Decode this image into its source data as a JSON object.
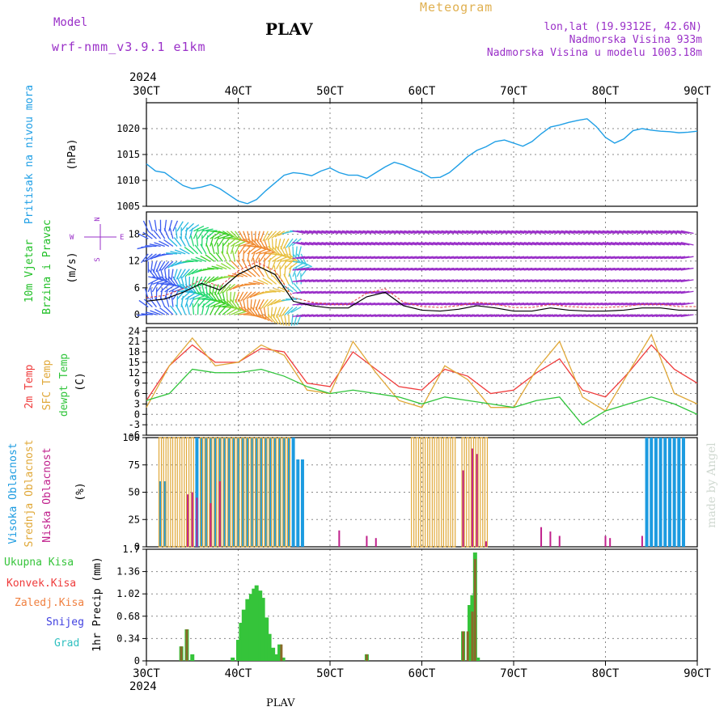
{
  "header": {
    "model_label": "Model",
    "model_name": "wrf-nmm_v3.9.1 e1km",
    "station": "PLAV",
    "product": "Meteogram",
    "lonlat": "lon,lat (19.9312E, 42.6N)",
    "elevation": "Nadmorska Visina 933m",
    "model_elevation": "Nadmorska Visina u modelu 1003.18m",
    "footer_station": "PLAV",
    "credit": "made by Angel"
  },
  "colors": {
    "pressure": "#1f9fe6",
    "t2m": "#ef3b3b",
    "sfc": "#e0a838",
    "dew": "#2fc43a",
    "high_cloud": "#1c9be0",
    "mid_cloud": "#e0a838",
    "low_cloud": "#c0208c",
    "total_precip": "#35c43a",
    "conv_precip": "#8a6a2a",
    "purple": "#9a30c8"
  },
  "time_axis": {
    "top_year": "2024",
    "bottom_year": "2024",
    "labels": [
      "30CT",
      "40CT",
      "50CT",
      "60CT",
      "70CT",
      "80CT",
      "90CT"
    ]
  },
  "panel_labels": {
    "pressure": [
      "Pritisak na nivou mora",
      "(hPa)"
    ],
    "wind": [
      "10m Vjetar",
      "Brzina i Pravac",
      "(m/s)"
    ],
    "wind_rose": [
      "N",
      "W",
      "E",
      "S"
    ],
    "temp": [
      "2m Temp",
      "SFC Temp",
      "dewpt Temp",
      "(C)"
    ],
    "cloud": [
      "Visoka Oblacnost",
      "Srednja Oblacnost",
      "Niska Oblacnost",
      "(%)"
    ],
    "precip": [
      "Ukupna Kisa",
      "Konvek.Kisa",
      "Zaledj.Kisa",
      "Snijeg",
      "Grad",
      "1hr Precip (mm)"
    ]
  },
  "chart_data": [
    {
      "type": "line",
      "name": "pressure",
      "ylabel": "(hPa)",
      "ylim": [
        1005,
        1025
      ],
      "yticks": [
        "1005",
        "1010",
        "1015",
        "1020"
      ],
      "x": [
        3.0,
        3.1,
        3.2,
        3.3,
        3.4,
        3.5,
        3.6,
        3.7,
        3.8,
        3.9,
        4.0,
        4.1,
        4.2,
        4.3,
        4.4,
        4.5,
        4.6,
        4.7,
        4.8,
        4.9,
        5.0,
        5.1,
        5.2,
        5.3,
        5.4,
        5.5,
        5.6,
        5.7,
        5.8,
        5.9,
        6.0,
        6.1,
        6.2,
        6.3,
        6.4,
        6.5,
        6.6,
        6.7,
        6.8,
        6.9,
        7.0,
        7.1,
        7.2,
        7.3,
        7.4,
        7.5,
        7.6,
        7.7,
        7.8,
        7.9,
        8.0,
        8.1,
        8.2,
        8.3,
        8.4,
        8.5,
        8.6,
        8.7,
        8.8,
        8.9,
        9.0
      ],
      "series": [
        {
          "values": [
            1013.2,
            1011.8,
            1011.5,
            1010.2,
            1009.0,
            1008.4,
            1008.7,
            1009.2,
            1008.4,
            1007.2,
            1006.0,
            1005.5,
            1006.3,
            1008.0,
            1009.5,
            1011.0,
            1011.5,
            1011.3,
            1010.9,
            1011.8,
            1012.4,
            1011.5,
            1011.0,
            1011.0,
            1010.4,
            1011.5,
            1012.6,
            1013.5,
            1013.0,
            1012.2,
            1011.5,
            1010.5,
            1010.6,
            1011.5,
            1013.0,
            1014.6,
            1015.8,
            1016.5,
            1017.5,
            1017.8,
            1017.2,
            1016.6,
            1017.5,
            1019.0,
            1020.3,
            1020.7,
            1021.2,
            1021.6,
            1021.9,
            1020.4,
            1018.3,
            1017.2,
            1018.0,
            1019.6,
            1020.0,
            1019.7,
            1019.5,
            1019.4,
            1019.2,
            1019.3,
            1019.5
          ]
        }
      ]
    },
    {
      "type": "line",
      "name": "wind",
      "ylabel": "(m/s)",
      "ylim": [
        -2,
        23
      ],
      "yticks": [
        "0",
        "6",
        "12",
        "18"
      ],
      "x": [
        3.0,
        3.2,
        3.4,
        3.6,
        3.8,
        4.0,
        4.2,
        4.4,
        4.6,
        4.8,
        5.0,
        5.2,
        5.4,
        5.6,
        5.8,
        6.0,
        6.2,
        6.4,
        6.6,
        6.8,
        7.0,
        7.2,
        7.4,
        7.6,
        7.8,
        8.0,
        8.2,
        8.4,
        8.6,
        8.8,
        9.0
      ],
      "series": [
        {
          "values": [
            3,
            3.5,
            5,
            7,
            5.5,
            9,
            11,
            9,
            3,
            2,
            1.5,
            1.5,
            4,
            5,
            2,
            1,
            0.8,
            1.2,
            2,
            1.5,
            0.8,
            0.8,
            1.5,
            1,
            0.8,
            0.8,
            1,
            1.5,
            1.5,
            1,
            1
          ]
        }
      ]
    },
    {
      "type": "line",
      "name": "temperature",
      "ylabel": "(C)",
      "ylim": [
        -6,
        25
      ],
      "yticks": [
        "-6",
        "-3",
        "0",
        "3",
        "6",
        "9",
        "12",
        "15",
        "18",
        "21",
        "24"
      ],
      "x": [
        3.0,
        3.25,
        3.5,
        3.75,
        4.0,
        4.25,
        4.5,
        4.75,
        5.0,
        5.25,
        5.5,
        5.75,
        6.0,
        6.25,
        6.5,
        6.75,
        7.0,
        7.25,
        7.5,
        7.75,
        8.0,
        8.25,
        8.5,
        8.75,
        9.0
      ],
      "series": [
        {
          "name": "2m Temp",
          "values": [
            4,
            14,
            20,
            15,
            15,
            19,
            18,
            9,
            8,
            18,
            13,
            8,
            7,
            13,
            11,
            6,
            7,
            12,
            16,
            7,
            5,
            12,
            20,
            13,
            9
          ]
        },
        {
          "name": "SFC Temp",
          "values": [
            2,
            14,
            22,
            14,
            15,
            20,
            17,
            7,
            6,
            21,
            12,
            4,
            2,
            14,
            10,
            2,
            2,
            13,
            21,
            5,
            1,
            12,
            23,
            6,
            3
          ]
        },
        {
          "name": "dewpt Temp",
          "values": [
            4,
            6,
            13,
            12,
            12,
            13,
            11,
            8,
            6,
            7,
            6,
            5,
            3,
            5,
            4,
            3,
            2,
            4,
            5,
            -3,
            1,
            3,
            5,
            3,
            0
          ]
        }
      ]
    },
    {
      "type": "bar",
      "name": "cloud",
      "ylabel": "(%)",
      "ylim": [
        0,
        100
      ],
      "yticks": [
        "0",
        "25",
        "50",
        "75",
        "100"
      ],
      "series": [
        {
          "name": "Visoka Oblacnost",
          "ranges": [
            [
              3.15,
              3.2,
              60
            ],
            [
              3.55,
              4.6,
              100
            ],
            [
              4.65,
              4.7,
              80
            ],
            [
              8.45,
              8.9,
              100
            ]
          ]
        },
        {
          "name": "Srednja Oblacnost",
          "ranges": [
            [
              3.15,
              3.5,
              100
            ],
            [
              3.6,
              4.55,
              100
            ],
            [
              5.9,
              6.35,
              100
            ],
            [
              6.45,
              6.7,
              100
            ]
          ]
        },
        {
          "name": "Niska Oblacnost",
          "values_x": [
            3.45,
            3.5,
            3.55,
            3.7,
            3.8,
            5.1,
            5.4,
            5.5,
            6.45,
            6.55,
            6.6,
            6.7,
            7.3,
            7.4,
            7.5,
            8.0,
            8.05,
            8.4
          ],
          "values": [
            48,
            50,
            45,
            40,
            60,
            15,
            10,
            8,
            70,
            90,
            85,
            5,
            18,
            14,
            10,
            10,
            8,
            10
          ]
        }
      ]
    },
    {
      "type": "bar",
      "name": "precip",
      "ylabel": "1hr Precip (mm)",
      "ylim": [
        0,
        1.7
      ],
      "yticks": [
        "0",
        "0.34",
        "0.68",
        "1.02",
        "1.36",
        "1.7"
      ],
      "series": [
        {
          "name": "Ukupna Kisa",
          "x": [
            3.38,
            3.44,
            3.5,
            3.94,
            4.0,
            4.03,
            4.06,
            4.1,
            4.14,
            4.17,
            4.2,
            4.24,
            4.27,
            4.31,
            4.34,
            4.38,
            4.42,
            4.45,
            4.49,
            5.4,
            6.45,
            6.52,
            6.55,
            6.58,
            6.61
          ],
          "values": [
            0.22,
            0.48,
            0.1,
            0.05,
            0.32,
            0.58,
            0.78,
            0.94,
            1.02,
            1.1,
            1.15,
            1.07,
            0.96,
            0.66,
            0.41,
            0.2,
            0.1,
            0.25,
            0.05,
            0.1,
            0.45,
            0.85,
            1.0,
            1.65,
            0.05
          ]
        },
        {
          "name": "Konvek.Kisa",
          "x": [
            3.38,
            3.44,
            4.47,
            5.4,
            6.45,
            6.5,
            6.55,
            6.58
          ],
          "values": [
            0.22,
            0.48,
            0.25,
            0.1,
            0.45,
            0.45,
            0.75,
            1.55
          ]
        }
      ]
    }
  ]
}
